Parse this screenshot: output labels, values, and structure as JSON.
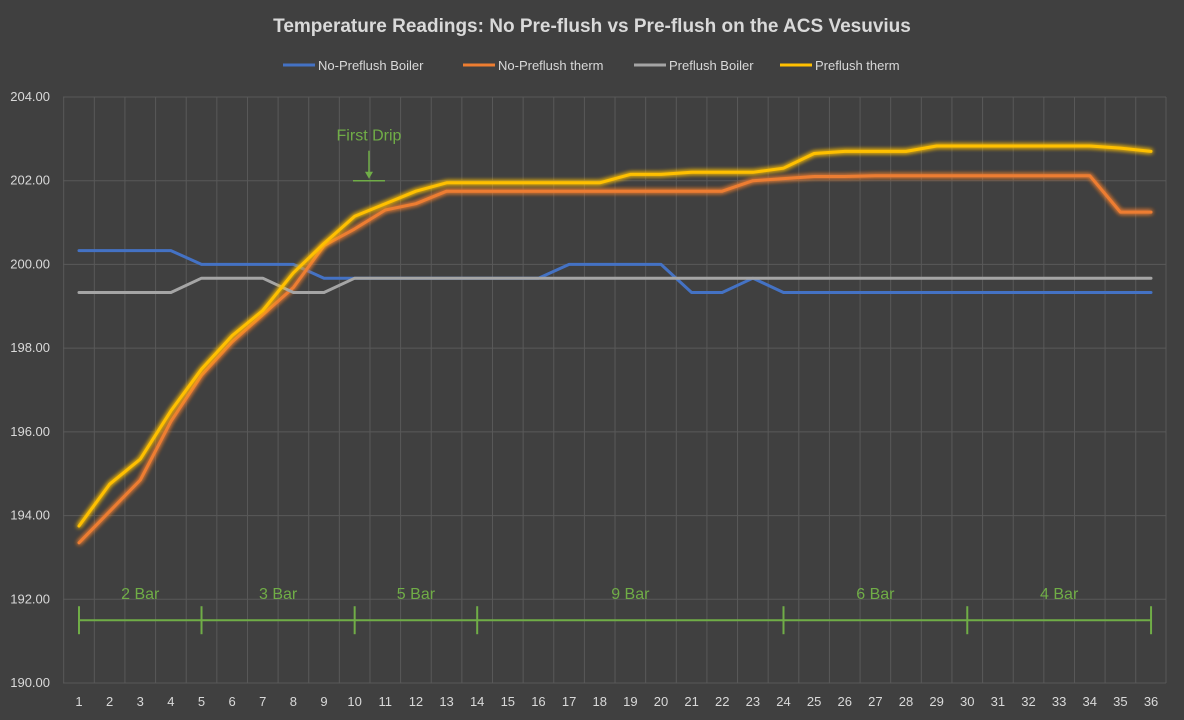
{
  "chart_data": {
    "type": "line",
    "title": "Temperature Readings:  No Pre-flush vs Pre-flush on the ACS Vesuvius",
    "xlabel": "",
    "ylabel": "",
    "ylim": [
      190,
      204
    ],
    "y_ticks": [
      "190.00",
      "192.00",
      "194.00",
      "196.00",
      "198.00",
      "200.00",
      "202.00",
      "204.00"
    ],
    "x": [
      1,
      2,
      3,
      4,
      5,
      6,
      7,
      8,
      9,
      10,
      11,
      12,
      13,
      14,
      15,
      16,
      17,
      18,
      19,
      20,
      21,
      22,
      23,
      24,
      25,
      26,
      27,
      28,
      29,
      30,
      31,
      32,
      33,
      34,
      35,
      36
    ],
    "grid": true,
    "legend": "top",
    "series": [
      {
        "name": "No-Preflush Boiler",
        "color": "#4472c4",
        "glow": false,
        "values": [
          200.33,
          200.33,
          200.33,
          200.33,
          200.0,
          200.0,
          200.0,
          200.0,
          199.67,
          199.67,
          199.67,
          199.67,
          199.67,
          199.67,
          199.67,
          199.67,
          200.0,
          200.0,
          200.0,
          200.0,
          199.33,
          199.33,
          199.67,
          199.33,
          199.33,
          199.33,
          199.33,
          199.33,
          199.33,
          199.33,
          199.33,
          199.33,
          199.33,
          199.33,
          199.33,
          199.33
        ]
      },
      {
        "name": "No-Preflush therm",
        "color": "#ed7d31",
        "glow": true,
        "values": [
          193.35,
          194.1,
          194.85,
          196.25,
          197.35,
          198.15,
          198.8,
          199.45,
          200.45,
          200.85,
          201.3,
          201.45,
          201.75,
          201.75,
          201.75,
          201.75,
          201.75,
          201.75,
          201.75,
          201.75,
          201.75,
          201.75,
          202.0,
          202.05,
          202.1,
          202.1,
          202.12,
          202.12,
          202.12,
          202.12,
          202.12,
          202.12,
          202.12,
          202.12,
          201.25,
          201.25
        ]
      },
      {
        "name": "Preflush Boiler",
        "color": "#a5a5a5",
        "glow": false,
        "values": [
          199.33,
          199.33,
          199.33,
          199.33,
          199.67,
          199.67,
          199.67,
          199.33,
          199.33,
          199.67,
          199.67,
          199.67,
          199.67,
          199.67,
          199.67,
          199.67,
          199.67,
          199.67,
          199.67,
          199.67,
          199.67,
          199.67,
          199.67,
          199.67,
          199.67,
          199.67,
          199.67,
          199.67,
          199.67,
          199.67,
          199.67,
          199.67,
          199.67,
          199.67,
          199.67,
          199.67
        ]
      },
      {
        "name": "Preflush therm",
        "color": "#ffc000",
        "glow": true,
        "values": [
          193.75,
          194.75,
          195.35,
          196.5,
          197.5,
          198.3,
          198.9,
          199.8,
          200.5,
          201.15,
          201.45,
          201.75,
          201.95,
          201.95,
          201.95,
          201.95,
          201.95,
          201.95,
          202.15,
          202.15,
          202.2,
          202.2,
          202.2,
          202.3,
          202.65,
          202.7,
          202.7,
          202.7,
          202.83,
          202.83,
          202.83,
          202.83,
          202.83,
          202.83,
          202.78,
          202.7
        ]
      }
    ],
    "annotations": {
      "first_drip": {
        "label": "First Drip",
        "x": 10.5,
        "y": 202.0,
        "color": "#70ad47"
      },
      "phases": [
        {
          "label": "2 Bar",
          "start": 1,
          "end": 5
        },
        {
          "label": "3 Bar",
          "start": 5,
          "end": 10
        },
        {
          "label": "5 Bar",
          "start": 10,
          "end": 14
        },
        {
          "label": "9 Bar",
          "start": 14,
          "end": 24
        },
        {
          "label": "6 Bar",
          "start": 24,
          "end": 30
        },
        {
          "label": "4 Bar",
          "start": 30,
          "end": 36
        }
      ],
      "phase_line_y": 191.5,
      "phase_color": "#70ad47"
    }
  }
}
